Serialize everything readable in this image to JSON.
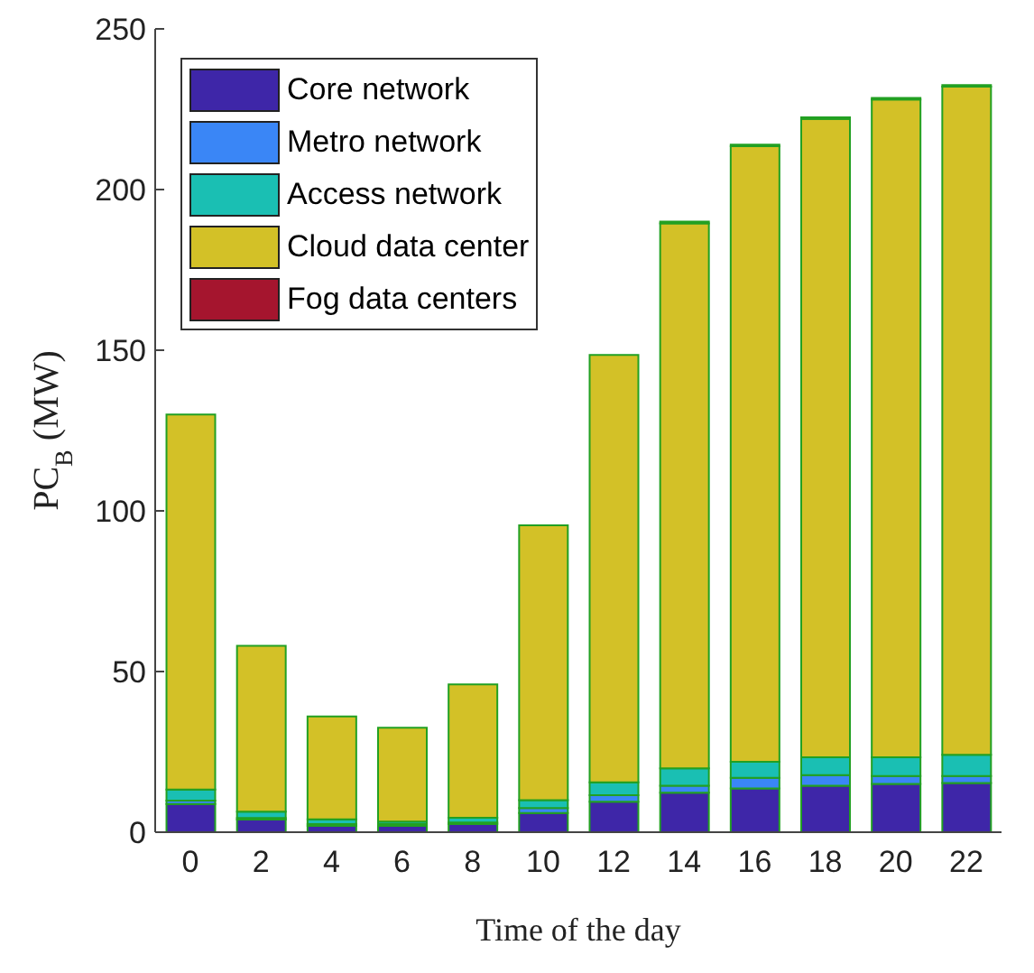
{
  "chart_data": {
    "type": "bar",
    "stacked": true,
    "xlabel": "Time of the day",
    "ylabel": "PC$_{B}$ (MW)",
    "categories": [
      "0",
      "2",
      "4",
      "6",
      "8",
      "10",
      "12",
      "14",
      "16",
      "18",
      "20",
      "22"
    ],
    "ylim": [
      0,
      250
    ],
    "yticks": [
      0,
      50,
      100,
      150,
      200,
      250
    ],
    "legend": "top left",
    "series": [
      {
        "name": "Core network",
        "color": "#3e26a8",
        "values": [
          8.8,
          3.9,
          2,
          2,
          2.5,
          6,
          9.5,
          12.3,
          13.6,
          14.5,
          15,
          15.3
        ]
      },
      {
        "name": "Metro network",
        "color": "#3a86f6",
        "values": [
          1,
          0.5,
          0.5,
          0.5,
          0.5,
          1.5,
          2,
          2.2,
          3.3,
          3.3,
          2.5,
          2.2
        ]
      },
      {
        "name": "Access network",
        "color": "#1abfb3",
        "values": [
          3.5,
          2,
          1.5,
          0.8,
          1.5,
          2.5,
          4,
          5.4,
          5,
          5.5,
          5.8,
          6.6
        ]
      },
      {
        "name": "Cloud data center",
        "color": "#d3c127",
        "values": [
          116.7,
          51.6,
          32,
          29.2,
          41.5,
          85.5,
          133,
          169.6,
          191.6,
          198.7,
          204.7,
          207.9
        ]
      },
      {
        "name": "Fog data centers",
        "color": "#a5152e",
        "values": [
          0,
          0,
          0,
          0,
          0,
          0,
          0,
          0.5,
          0.5,
          0.5,
          0.5,
          0.5
        ]
      }
    ]
  }
}
